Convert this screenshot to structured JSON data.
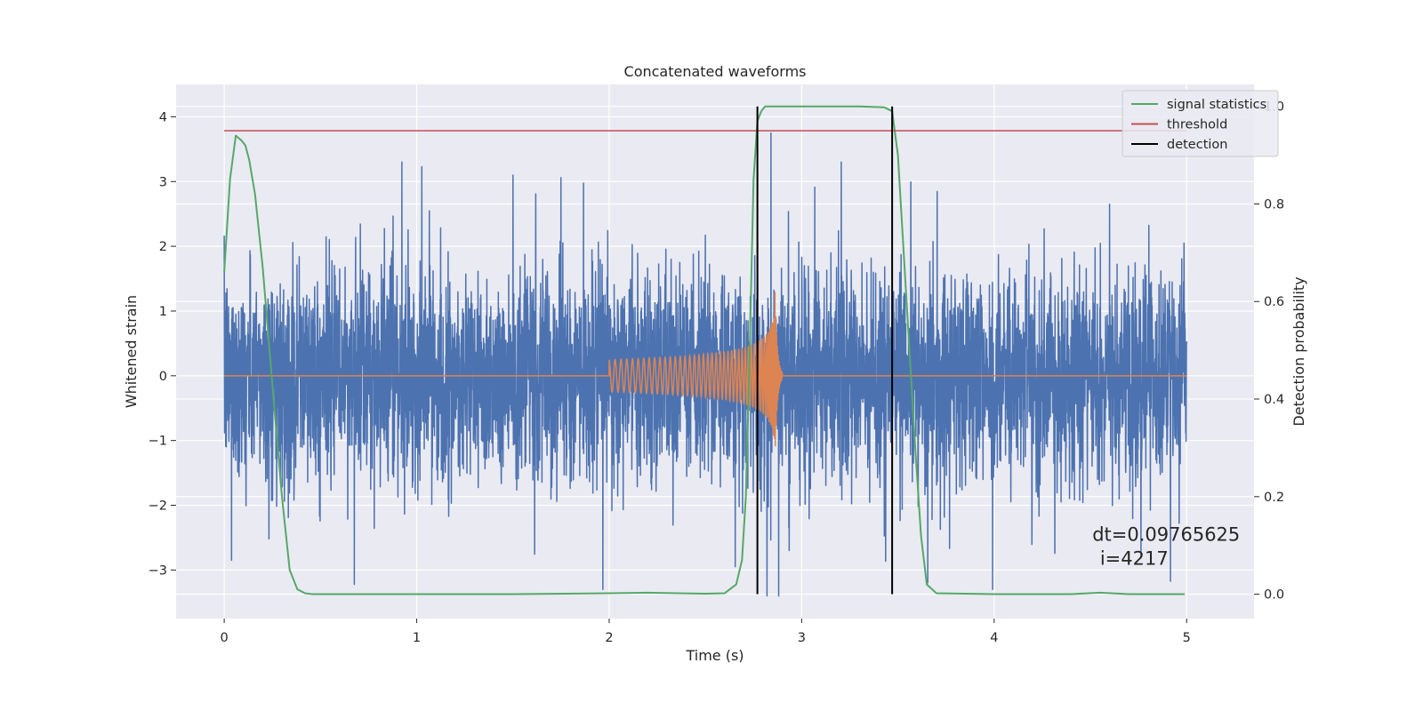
{
  "chart_data": {
    "type": "line",
    "title": "Concatenated waveforms",
    "xlabel": "Time (s)",
    "ylabel_left": "Whitened strain",
    "ylabel_right": "Detection probability",
    "xlim": [
      -0.25,
      5.35
    ],
    "ylim_left": [
      -3.75,
      4.5
    ],
    "ylim_right": [
      -0.05,
      1.045
    ],
    "xticks": [
      0,
      1,
      2,
      3,
      4,
      5
    ],
    "xtick_labels": [
      "0",
      "1",
      "2",
      "3",
      "4",
      "5"
    ],
    "yticks_left": [
      4,
      3,
      2,
      1,
      0,
      -1,
      -2,
      -3
    ],
    "ytick_labels_left": [
      "4",
      "3",
      "2",
      "1",
      "0",
      "−1",
      "−2",
      "−3"
    ],
    "yticks_right": [
      1.0,
      0.8,
      0.6,
      0.4,
      0.2,
      0.0
    ],
    "ytick_labels_right": [
      "1.0",
      "0.8",
      "0.6",
      "0.4",
      "0.2",
      "0.0"
    ],
    "grid": true,
    "legend_position": "upper right",
    "background": "#eaeaf2",
    "series": [
      {
        "key": "strain",
        "axis": "left",
        "color": "#4c72b0",
        "kind": "noise",
        "x_range": [
          0,
          5
        ],
        "typical_extent": 1.5,
        "peak_extent": 3.3,
        "notable_peaks": [
          [
            1.5,
            3.1
          ],
          [
            2.82,
            -3.4
          ],
          [
            2.84,
            3.75
          ],
          [
            2.88,
            -3.4
          ]
        ]
      },
      {
        "key": "injected",
        "axis": "left",
        "color": "#dd8452",
        "kind": "chirp",
        "x_range": [
          0,
          5
        ],
        "chirp_start": 2.0,
        "chirp_peak": 2.86,
        "chirp_end": 2.9,
        "amp_start": 0.25,
        "amp_peak": 1.5
      },
      {
        "name": "signal statistics",
        "axis": "right",
        "color": "#55a868",
        "x": [
          0,
          0.03,
          0.06,
          0.09,
          0.11,
          0.13,
          0.16,
          0.2,
          0.25,
          0.3,
          0.34,
          0.38,
          0.42,
          0.46,
          0.6,
          1.0,
          1.5,
          2.0,
          2.2,
          2.5,
          2.6,
          2.66,
          2.69,
          2.71,
          2.73,
          2.75,
          2.77,
          2.79,
          2.81,
          2.85,
          3.0,
          3.3,
          3.43,
          3.47,
          3.5,
          3.53,
          3.56,
          3.59,
          3.62,
          3.65,
          3.7,
          4.0,
          4.4,
          4.55,
          4.7,
          4.99
        ],
        "y": [
          0.66,
          0.85,
          0.94,
          0.93,
          0.92,
          0.89,
          0.82,
          0.67,
          0.43,
          0.2,
          0.05,
          0.01,
          0.002,
          0.0,
          0.0,
          0.0,
          0.0,
          0.002,
          0.003,
          0.001,
          0.002,
          0.02,
          0.07,
          0.2,
          0.5,
          0.85,
          0.97,
          0.99,
          1.0,
          1.0,
          1.0,
          1.0,
          0.998,
          0.99,
          0.9,
          0.7,
          0.5,
          0.3,
          0.12,
          0.02,
          0.002,
          0.0,
          0.0,
          0.003,
          0.0,
          0.0
        ]
      },
      {
        "name": "threshold",
        "axis": "right",
        "color": "#c44e52",
        "x": [
          0,
          5
        ],
        "y": [
          0.95,
          0.95
        ]
      },
      {
        "name": "detection",
        "axis": "right",
        "color": "#000000",
        "x_lines": [
          2.77,
          3.47
        ],
        "y_range": [
          0.0,
          1.0
        ]
      }
    ],
    "annotation": {
      "line1": "dt=0.09765625",
      "line2": "i=4217"
    }
  }
}
